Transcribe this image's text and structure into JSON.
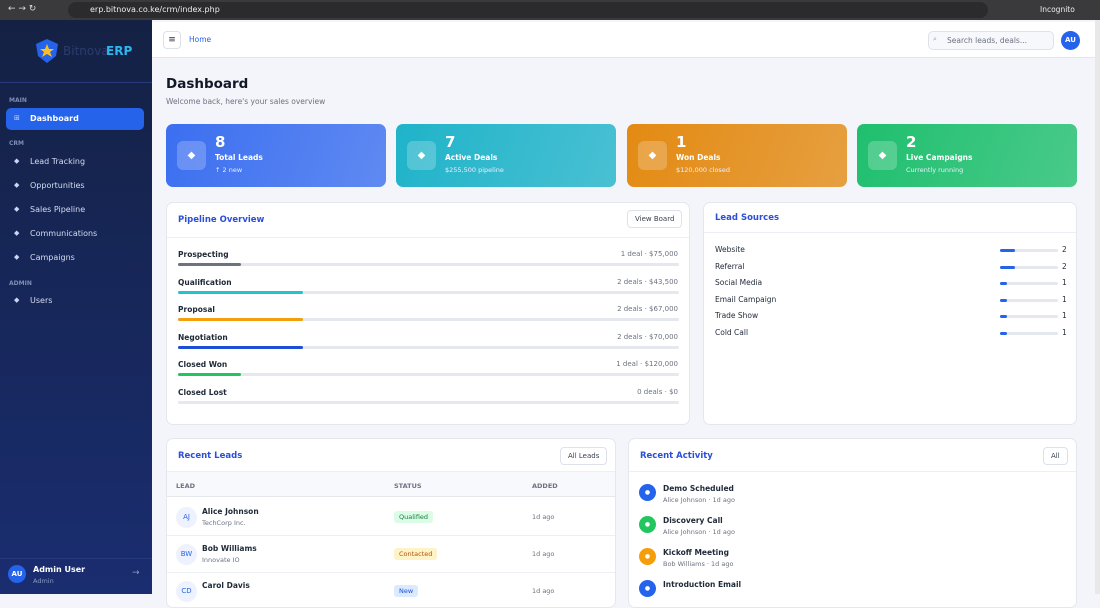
{
  "browser": {
    "url": "erp.bitnova.co.ke/crm/index.php",
    "mode": "Incognito"
  },
  "sidebar": {
    "brand": "Bitnova",
    "brand_accent": "ERP",
    "sections": [
      {
        "title": "MAIN",
        "items": [
          "Dashboard"
        ]
      },
      {
        "title": "CRM",
        "items": [
          "Lead Tracking",
          "Opportunities",
          "Sales Pipeline",
          "Communications",
          "Campaigns"
        ]
      },
      {
        "title": "ADMIN",
        "items": [
          "Users"
        ]
      }
    ],
    "user": {
      "initials": "AU",
      "name": "Admin User",
      "role": "Admin"
    }
  },
  "topbar": {
    "breadcrumb": "Home",
    "search_placeholder": "Search leads, deals...",
    "avatar": "AU"
  },
  "header": {
    "title": "Dashboard",
    "subtitle": "Welcome back, here's your sales overview"
  },
  "stats": [
    {
      "value": 8,
      "label": "Total Leads",
      "note": "↑ 2 new",
      "color": "#3b6ff0"
    },
    {
      "value": 7,
      "label": "Active Deals",
      "note": "$255,500 pipeline",
      "color": "#1fb3c9"
    },
    {
      "value": 1,
      "label": "Won Deals",
      "note": "$120,000 closed",
      "color": "#e38a12"
    },
    {
      "value": 2,
      "label": "Live Campaigns",
      "note": "Currently running",
      "color": "#1fbf6e"
    }
  ],
  "pipeline": {
    "title": "Pipeline Overview",
    "button": "View Board",
    "stages": [
      {
        "name": "Prospecting",
        "summary": "1 deal · $75,000",
        "percent": 12.5,
        "color": "#6b7280"
      },
      {
        "name": "Qualification",
        "summary": "2 deals · $43,500",
        "percent": 25,
        "color": "#22c3cf"
      },
      {
        "name": "Proposal",
        "summary": "2 deals · $67,000",
        "percent": 25,
        "color": "#f59e0b"
      },
      {
        "name": "Negotiation",
        "summary": "2 deals · $70,000",
        "percent": 25,
        "color": "#1d4ed8"
      },
      {
        "name": "Closed Won",
        "summary": "1 deal · $120,000",
        "percent": 12.5,
        "color": "#22c55e"
      },
      {
        "name": "Closed Lost",
        "summary": "0 deals · $0",
        "percent": 0,
        "color": "#ef4444"
      }
    ]
  },
  "lead_sources": {
    "title": "Lead Sources",
    "sources": [
      {
        "name": "Website",
        "count": 2
      },
      {
        "name": "Referral",
        "count": 2
      },
      {
        "name": "Social Media",
        "count": 1
      },
      {
        "name": "Email Campaign",
        "count": 1
      },
      {
        "name": "Trade Show",
        "count": 1
      },
      {
        "name": "Cold Call",
        "count": 1
      }
    ]
  },
  "recent_leads": {
    "title": "Recent Leads",
    "button": "All Leads",
    "columns": [
      "LEAD",
      "STATUS",
      "ADDED"
    ],
    "rows": [
      {
        "initials": "AJ",
        "name": "Alice Johnson",
        "company": "TechCorp Inc.",
        "status": "Qualified",
        "added": "1d ago"
      },
      {
        "initials": "BW",
        "name": "Bob Williams",
        "company": "Innovate IO",
        "status": "Contacted",
        "added": "1d ago"
      },
      {
        "initials": "CD",
        "name": "Carol Davis",
        "company": "",
        "status": "New",
        "added": "1d ago"
      }
    ]
  },
  "recent_activity": {
    "title": "Recent Activity",
    "button": "All",
    "items": [
      {
        "title": "Demo Scheduled",
        "meta": "Alice Johnson · 1d ago",
        "color": "#2563eb"
      },
      {
        "title": "Discovery Call",
        "meta": "Alice Johnson · 1d ago",
        "color": "#22c55e"
      },
      {
        "title": "Kickoff Meeting",
        "meta": "Bob Williams · 1d ago",
        "color": "#f59e0b"
      },
      {
        "title": "Introduction Email",
        "meta": "",
        "color": "#2563eb"
      }
    ]
  }
}
